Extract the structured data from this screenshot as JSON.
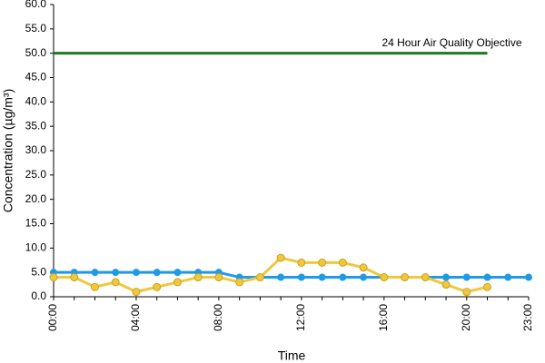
{
  "chart_data": {
    "type": "line",
    "x_label": "Time",
    "y_label": "Concentration (µg/m³)",
    "categories": [
      "00:00",
      null,
      null,
      null,
      "04:00",
      null,
      null,
      null,
      "08:00",
      null,
      null,
      null,
      "12:00",
      null,
      null,
      null,
      "16:00",
      null,
      null,
      null,
      "20:00",
      null,
      null,
      "23:00"
    ],
    "series": [
      {
        "color": "#1f9be6",
        "values": [
          5,
          5,
          5,
          5,
          5,
          5,
          5,
          5,
          5,
          4,
          4,
          4,
          4,
          4,
          4,
          4,
          4,
          4,
          4,
          4,
          4,
          4,
          4,
          4
        ]
      },
      {
        "color": "#f0c83c",
        "values": [
          4,
          4,
          2,
          3,
          1,
          2,
          3,
          4,
          4,
          3,
          4,
          8,
          7,
          7,
          7,
          6,
          4,
          4,
          4,
          2.5,
          1,
          2,
          null,
          null
        ]
      },
      {
        "name": "24 Hour Air Quality Objective",
        "color": "#1e7a1e",
        "values": [
          50,
          50,
          50,
          50,
          50,
          50,
          50,
          50,
          50,
          50,
          50,
          50,
          50,
          50,
          50,
          50,
          50,
          50,
          50,
          50,
          50,
          50,
          null,
          null
        ]
      }
    ],
    "ylim": [
      0,
      60
    ],
    "yticks": [
      {
        "value": 0,
        "label": "0.0"
      },
      {
        "value": 5,
        "label": "5.0"
      },
      {
        "value": 10,
        "label": "10.0"
      },
      {
        "value": 15,
        "label": "15.0"
      },
      {
        "value": 20,
        "label": "20.0"
      },
      {
        "value": 25,
        "label": "25.0"
      },
      {
        "value": 30,
        "label": "30.0"
      },
      {
        "value": 35,
        "label": "35.0"
      },
      {
        "value": 40,
        "label": "40.0"
      },
      {
        "value": 45,
        "label": "45.0"
      },
      {
        "value": 50,
        "label": "50.0"
      },
      {
        "value": 55,
        "label": "55.0"
      },
      {
        "value": 60,
        "label": "60.0"
      }
    ],
    "grid": false
  }
}
